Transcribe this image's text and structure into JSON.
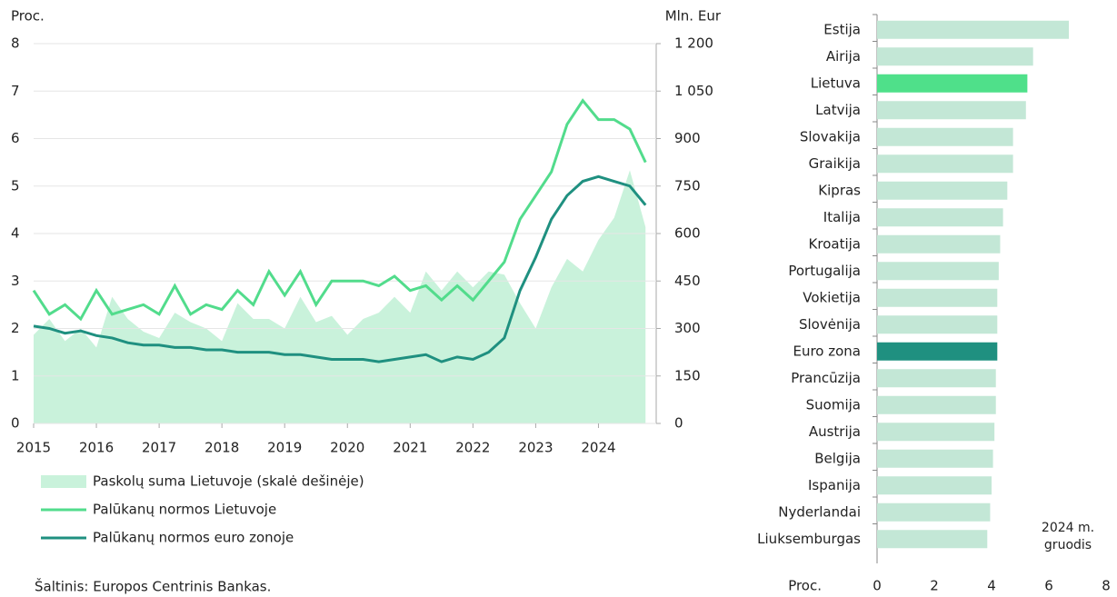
{
  "chart_data": [
    {
      "type": "line",
      "ylabel": "Proc.",
      "y2label": "Mln. Eur",
      "x": [
        2015,
        2015.25,
        2015.5,
        2015.75,
        2016,
        2016.25,
        2016.5,
        2016.75,
        2017,
        2017.25,
        2017.5,
        2017.75,
        2018,
        2018.25,
        2018.5,
        2018.75,
        2019,
        2019.25,
        2019.5,
        2019.75,
        2020,
        2020.25,
        2020.5,
        2020.75,
        2021,
        2021.25,
        2021.5,
        2021.75,
        2022,
        2022.25,
        2022.5,
        2022.75,
        2023,
        2023.25,
        2023.5,
        2023.75,
        2024,
        2024.25,
        2024.5,
        2024.75
      ],
      "xlim": [
        2015,
        2024.92
      ],
      "xticks": [
        2015,
        2016,
        2017,
        2018,
        2019,
        2020,
        2021,
        2022,
        2023,
        2024
      ],
      "ylim": [
        0,
        8
      ],
      "yticks": [
        0,
        1,
        2,
        3,
        4,
        5,
        6,
        7,
        8
      ],
      "y2lim": [
        0,
        1200
      ],
      "y2ticks": [
        0,
        150,
        300,
        450,
        600,
        750,
        900,
        {
          "value": 1050,
          "label": "1 050"
        },
        {
          "value": 1200,
          "label": "1 200"
        }
      ],
      "grid": true,
      "series": [
        {
          "name": "Paskolų suma Lietuvoje (skalė dešinėje)",
          "type": "area",
          "axis": "y2",
          "color": "#c9f2db",
          "values": [
            280,
            330,
            260,
            300,
            240,
            400,
            330,
            290,
            270,
            350,
            320,
            300,
            260,
            380,
            330,
            330,
            300,
            400,
            320,
            340,
            280,
            330,
            350,
            400,
            350,
            480,
            420,
            480,
            430,
            480,
            470,
            380,
            300,
            430,
            520,
            480,
            580,
            650,
            800,
            620
          ]
        },
        {
          "name": "Palūkanų normos Lietuvoje",
          "type": "line",
          "color": "#52dc8c",
          "values": [
            2.8,
            2.3,
            2.5,
            2.2,
            2.8,
            2.3,
            2.4,
            2.5,
            2.3,
            2.9,
            2.3,
            2.5,
            2.4,
            2.8,
            2.5,
            3.2,
            2.7,
            3.2,
            2.5,
            3.0,
            3.0,
            3.0,
            2.9,
            3.1,
            2.8,
            2.9,
            2.6,
            2.9,
            2.6,
            3.0,
            3.4,
            4.3,
            4.8,
            5.3,
            6.3,
            6.8,
            6.4,
            6.4,
            6.2,
            5.5
          ]
        },
        {
          "name": "Palūkanų normos euro zonoje",
          "type": "line",
          "color": "#1f9080",
          "values": [
            2.05,
            2.0,
            1.9,
            1.95,
            1.85,
            1.8,
            1.7,
            1.65,
            1.65,
            1.6,
            1.6,
            1.55,
            1.55,
            1.5,
            1.5,
            1.5,
            1.45,
            1.45,
            1.4,
            1.35,
            1.35,
            1.35,
            1.3,
            1.35,
            1.4,
            1.45,
            1.3,
            1.4,
            1.35,
            1.5,
            1.8,
            2.8,
            3.5,
            4.3,
            4.8,
            5.1,
            5.2,
            5.1,
            5.0,
            4.6
          ]
        }
      ]
    },
    {
      "type": "barh",
      "xlabel": "Proc.",
      "annotation": [
        "2024 m.",
        "gruodis"
      ],
      "categories": [
        "Estija",
        "Airija",
        "Lietuva",
        "Latvija",
        "Slovakija",
        "Graikija",
        "Kipras",
        "Italija",
        "Kroatija",
        "Portugalija",
        "Vokietija",
        "Slovėnija",
        "Euro zona",
        "Prancūzija",
        "Suomija",
        "Austrija",
        "Belgija",
        "Ispanija",
        "Nyderlandai",
        "Liuksemburgas"
      ],
      "values": [
        6.7,
        5.45,
        5.25,
        5.2,
        4.75,
        4.75,
        4.55,
        4.4,
        4.3,
        4.25,
        4.2,
        4.2,
        4.2,
        4.15,
        4.15,
        4.1,
        4.05,
        4.0,
        3.95,
        3.85
      ],
      "colors": [
        "#c3e7d6",
        "#c3e7d6",
        "#4fe08a",
        "#c3e7d6",
        "#c3e7d6",
        "#c3e7d6",
        "#c3e7d6",
        "#c3e7d6",
        "#c3e7d6",
        "#c3e7d6",
        "#c3e7d6",
        "#c3e7d6",
        "#1f9080",
        "#c3e7d6",
        "#c3e7d6",
        "#c3e7d6",
        "#c3e7d6",
        "#c3e7d6",
        "#c3e7d6",
        "#c3e7d6"
      ],
      "xlim": [
        0,
        8
      ],
      "xticks": [
        0,
        2,
        4,
        6,
        8
      ]
    }
  ],
  "source": "Šaltinis: Europos Centrinis Bankas."
}
